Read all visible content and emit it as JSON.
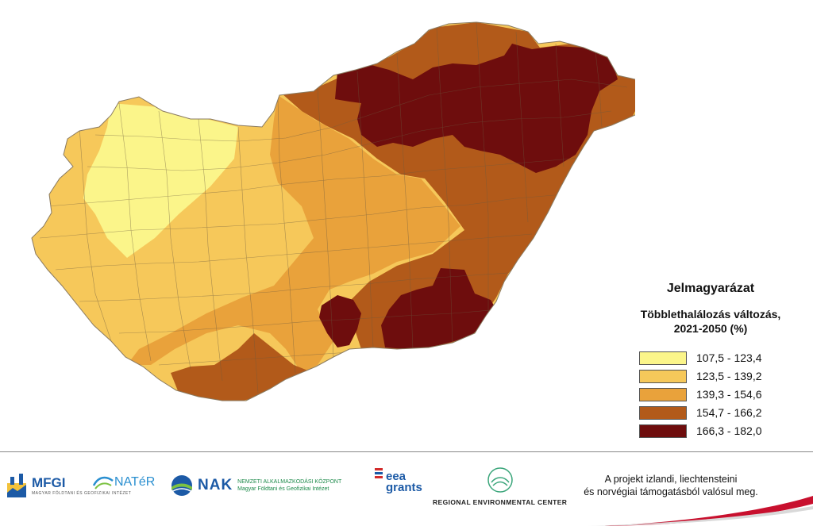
{
  "legend": {
    "title": "Jelmagyarázat",
    "subtitle_line1": "Többlethalálozás változás,",
    "subtitle_line2": "2021-2050 (%)",
    "classes": [
      {
        "label": "107,5 - 123,4",
        "color": "#fbf58a"
      },
      {
        "label": "123,5 - 139,2",
        "color": "#f6c85a"
      },
      {
        "label": "139,3 - 154,6",
        "color": "#e9a23b"
      },
      {
        "label": "154,7 - 166,2",
        "color": "#b25a1a"
      },
      {
        "label": "166,3 - 182,0",
        "color": "#6e0d0d"
      }
    ]
  },
  "footer": {
    "logos": {
      "mfgi": "MFGI",
      "mfgi_sub": "MAGYAR FÖLDTANI ÉS GEOFIZIKAI INTÉZET",
      "nater": "NATéR",
      "nak": "NAK",
      "nak_sub1": "NEMZETI ALKALMAZKODÁSI KÖZPONT",
      "nak_sub2": "Magyar Földtani és Geofizikai Intézet",
      "eea_line1": "eea",
      "eea_line2": "grants",
      "rec": "REGIONAL ENVIRONMENTAL CENTER"
    },
    "note_line1": "A projekt izlandi, liechtensteini",
    "note_line2": "és norvégiai támogatásból valósul meg."
  }
}
